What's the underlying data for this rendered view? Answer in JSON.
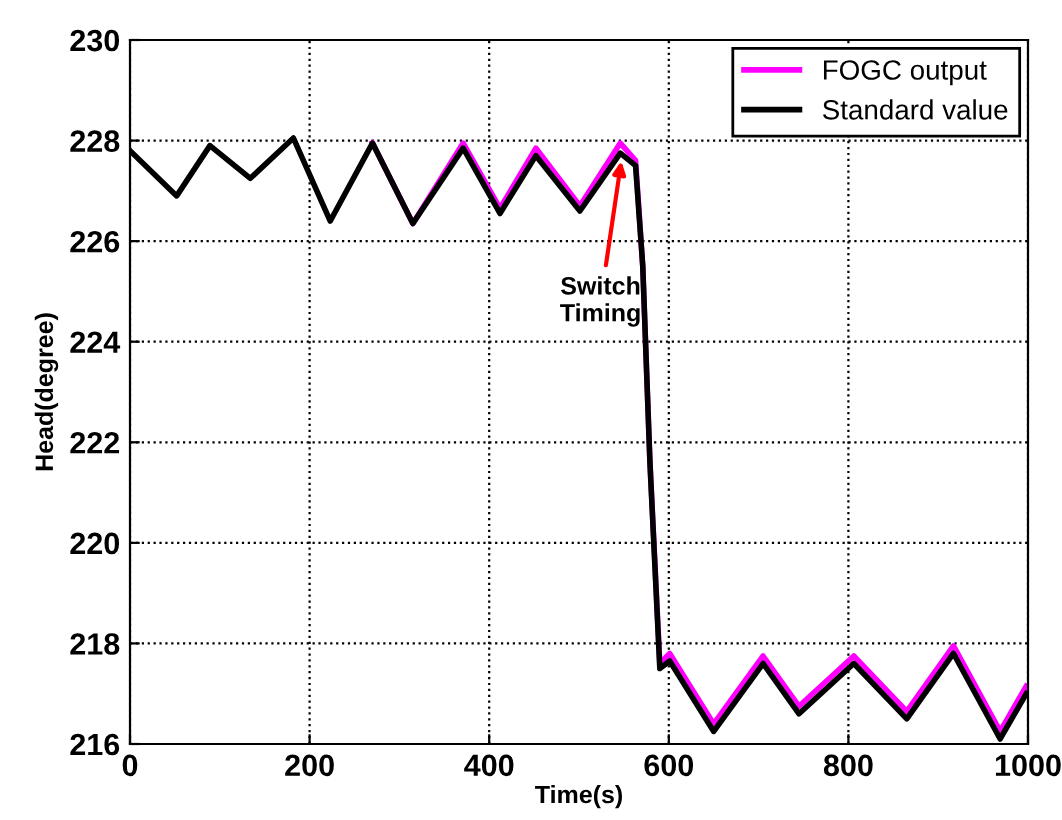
{
  "chart_data": {
    "type": "line",
    "xlabel": "Time(s)",
    "ylabel": "Head(degree)",
    "xlim": [
      0,
      1000
    ],
    "ylim": [
      216,
      230
    ],
    "xticks": [
      0,
      200,
      400,
      600,
      800,
      1000
    ],
    "yticks": [
      216,
      218,
      220,
      222,
      224,
      226,
      228,
      230
    ],
    "grid": true,
    "legend": "top right",
    "line_style": "solid",
    "marker": "none",
    "annotations": [
      {
        "text": "Switch\nTiming",
        "x": 548,
        "y": 227.7
      }
    ],
    "series": [
      {
        "name": "FOGC output",
        "color": "#ff00ff",
        "x": [
          270,
          315,
          371,
          412,
          452,
          501,
          546,
          563,
          571,
          579,
          590,
          601,
          650,
          705,
          745,
          806,
          865,
          917,
          969,
          998
        ],
        "values": [
          227.95,
          226.35,
          227.95,
          226.65,
          227.85,
          226.7,
          227.95,
          227.6,
          225.5,
          221.6,
          217.6,
          217.8,
          216.4,
          217.75,
          216.75,
          217.75,
          216.65,
          217.95,
          216.25,
          217.15
        ]
      },
      {
        "name": "Standard value",
        "color": "#000000",
        "x": [
          0,
          52,
          89,
          134,
          182,
          223,
          270,
          315,
          371,
          412,
          452,
          501,
          546,
          563,
          571,
          579,
          590,
          601,
          650,
          705,
          745,
          806,
          865,
          917,
          969,
          998
        ],
        "values": [
          227.8,
          226.9,
          227.9,
          227.25,
          228.05,
          226.4,
          227.95,
          226.35,
          227.85,
          226.55,
          227.7,
          226.6,
          227.75,
          227.5,
          225.5,
          221.6,
          217.5,
          217.65,
          216.25,
          217.6,
          216.6,
          217.6,
          216.5,
          217.8,
          216.1,
          217.0
        ]
      }
    ]
  }
}
